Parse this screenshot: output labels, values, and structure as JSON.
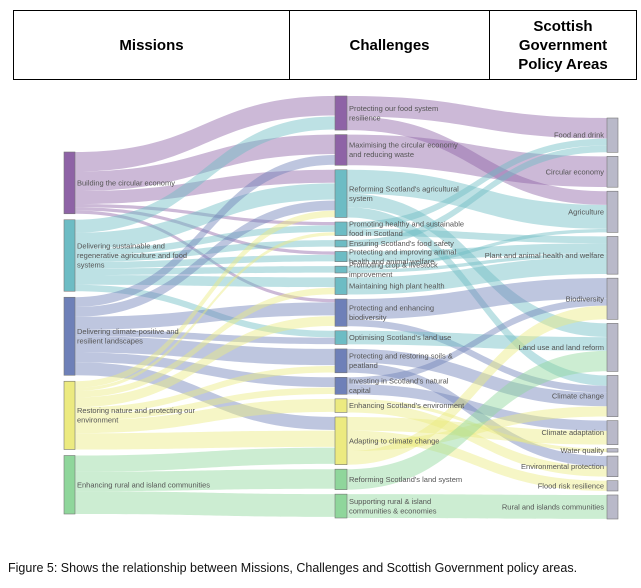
{
  "header": {
    "missions": "Missions",
    "challenges": "Challenges",
    "policy_line1": "Scottish",
    "policy_line2": "Government",
    "policy_line3": "Policy Areas"
  },
  "missions": [
    {
      "id": "m1",
      "label": "Building the circular economy",
      "color": "#8e63a6"
    },
    {
      "id": "m2",
      "label": "Delivering sustainable and regenerative agriculture and food systems",
      "color": "#6dbcc4"
    },
    {
      "id": "m3",
      "label": "Delivering climate-positive and resilient landscapes",
      "color": "#6e80b8"
    },
    {
      "id": "m4",
      "label": "Restoring nature and protecting our environment",
      "color": "#ecea80"
    },
    {
      "id": "m5",
      "label": "Enhancing rural and island communities",
      "color": "#8fd69b"
    }
  ],
  "challenges": [
    {
      "id": "c1",
      "label": "Protecting our food system resilience"
    },
    {
      "id": "c2",
      "label": "Maximising the circular economy and reducing waste"
    },
    {
      "id": "c3",
      "label": "Reforming Scotland's agricultural system"
    },
    {
      "id": "c4",
      "label": "Promoting healthy and sustainable food in Scotland"
    },
    {
      "id": "c5",
      "label": "Ensuring Scotland's food safety"
    },
    {
      "id": "c6",
      "label": "Protecting and improving animal health and animal welfare"
    },
    {
      "id": "c7",
      "label": "Promoting crop & livestock improvement"
    },
    {
      "id": "c8",
      "label": "Maintaining high plant health"
    },
    {
      "id": "c9",
      "label": "Protecting and enhancing biodiversity"
    },
    {
      "id": "c10",
      "label": "Optimising Scotland's land use"
    },
    {
      "id": "c11",
      "label": "Protecting and restoring soils & peatland"
    },
    {
      "id": "c12",
      "label": "Investing in Scotland's natural capital"
    },
    {
      "id": "c13",
      "label": "Enhancing Scotland's environment"
    },
    {
      "id": "c14",
      "label": "Adapting to climate change"
    },
    {
      "id": "c15",
      "label": "Reforming Scotland's land system"
    },
    {
      "id": "c16",
      "label": "Supporting rural & island communities & economies"
    }
  ],
  "policy_areas": [
    {
      "id": "p1",
      "label": "Food and drink"
    },
    {
      "id": "p2",
      "label": "Circular economy"
    },
    {
      "id": "p3",
      "label": "Agriculture"
    },
    {
      "id": "p4",
      "label": "Plant and animal health and welfare"
    },
    {
      "id": "p5",
      "label": "Biodiversity"
    },
    {
      "id": "p6",
      "label": "Land use and land reform"
    },
    {
      "id": "p7",
      "label": "Climate change"
    },
    {
      "id": "p8",
      "label": "Climate adaptation"
    },
    {
      "id": "p9",
      "label": "Water quality"
    },
    {
      "id": "p10",
      "label": "Environmental protection"
    },
    {
      "id": "p11",
      "label": "Flood risk resilience"
    },
    {
      "id": "p12",
      "label": "Rural and islands communities"
    }
  ],
  "flows_left": [
    [
      "m1",
      "c1",
      6
    ],
    [
      "m1",
      "c2",
      6
    ],
    [
      "m1",
      "c3",
      4
    ],
    [
      "m1",
      "c4",
      1
    ],
    [
      "m1",
      "c6",
      1
    ],
    [
      "m1",
      "c9",
      1
    ],
    [
      "m2",
      "c1",
      4
    ],
    [
      "m2",
      "c3",
      5
    ],
    [
      "m2",
      "c4",
      2
    ],
    [
      "m2",
      "c5",
      2
    ],
    [
      "m2",
      "c6",
      2
    ],
    [
      "m2",
      "c7",
      2
    ],
    [
      "m2",
      "c8",
      3
    ],
    [
      "m2",
      "c10",
      2
    ],
    [
      "m3",
      "c2",
      3
    ],
    [
      "m3",
      "c3",
      3
    ],
    [
      "m3",
      "c9",
      4
    ],
    [
      "m3",
      "c10",
      2
    ],
    [
      "m3",
      "c11",
      5
    ],
    [
      "m3",
      "c12",
      3
    ],
    [
      "m3",
      "c14",
      4
    ],
    [
      "m4",
      "c3",
      2
    ],
    [
      "m4",
      "c4",
      1
    ],
    [
      "m4",
      "c8",
      2
    ],
    [
      "m4",
      "c9",
      3
    ],
    [
      "m4",
      "c11",
      2
    ],
    [
      "m4",
      "c12",
      2
    ],
    [
      "m4",
      "c13",
      4
    ],
    [
      "m4",
      "c14",
      5
    ],
    [
      "m5",
      "c14",
      5
    ],
    [
      "m5",
      "c15",
      6
    ],
    [
      "m5",
      "c16",
      7
    ]
  ],
  "flows_right": [
    [
      "c1",
      "p1",
      6
    ],
    [
      "c1",
      "p3",
      4
    ],
    [
      "c2",
      "p2",
      9
    ],
    [
      "c3",
      "p3",
      7
    ],
    [
      "c3",
      "p6",
      4
    ],
    [
      "c3",
      "p7",
      3
    ],
    [
      "c4",
      "p1",
      2
    ],
    [
      "c4",
      "p4",
      2
    ],
    [
      "c5",
      "p1",
      2
    ],
    [
      "c6",
      "p4",
      3
    ],
    [
      "c7",
      "p3",
      1
    ],
    [
      "c7",
      "p4",
      1
    ],
    [
      "c8",
      "p4",
      5
    ],
    [
      "c9",
      "p5",
      6
    ],
    [
      "c9",
      "p7",
      2
    ],
    [
      "c10",
      "p6",
      4
    ],
    [
      "c11",
      "p7",
      4
    ],
    [
      "c11",
      "p10",
      3
    ],
    [
      "c12",
      "p5",
      2
    ],
    [
      "c12",
      "p8",
      3
    ],
    [
      "c13",
      "p9",
      1
    ],
    [
      "c13",
      "p10",
      3
    ],
    [
      "c14",
      "p8",
      4
    ],
    [
      "c14",
      "p11",
      3
    ],
    [
      "c14",
      "p7",
      3
    ],
    [
      "c14",
      "p5",
      4
    ],
    [
      "c15",
      "p6",
      6
    ],
    [
      "c16",
      "p12",
      7
    ]
  ],
  "caption": "Figure 5: Shows the relationship between Missions, Challenges and Scottish Government policy areas."
}
